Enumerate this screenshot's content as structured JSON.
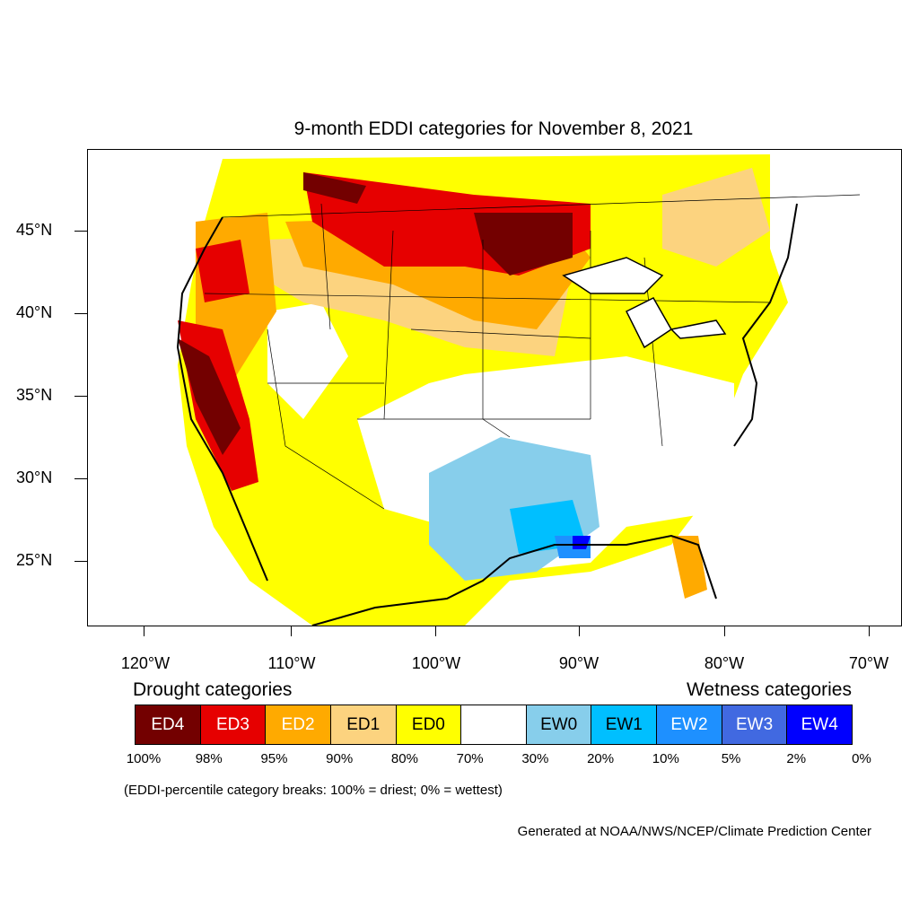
{
  "title": "9-month EDDI categories for November 8, 2021",
  "latitude_labels": [
    "45°N",
    "40°N",
    "35°N",
    "30°N",
    "25°N"
  ],
  "longitude_labels": [
    "120°W",
    "110°W",
    "100°W",
    "90°W",
    "80°W",
    "70°W"
  ],
  "legend": {
    "drought_heading": "Drought categories",
    "wetness_heading": "Wetness categories",
    "categories": [
      {
        "label": "ED4",
        "color": "#730000",
        "text_color": "#ffffff"
      },
      {
        "label": "ED3",
        "color": "#e60000",
        "text_color": "#ffffff"
      },
      {
        "label": "ED2",
        "color": "#ffaa00",
        "text_color": "#ffffff"
      },
      {
        "label": "ED1",
        "color": "#fcd37f",
        "text_color": "#000000"
      },
      {
        "label": "ED0",
        "color": "#ffff00",
        "text_color": "#000000"
      },
      {
        "label": "",
        "color": "#ffffff",
        "text_color": "#000000"
      },
      {
        "label": "EW0",
        "color": "#87ceeb",
        "text_color": "#000000"
      },
      {
        "label": "EW1",
        "color": "#00bfff",
        "text_color": "#000000"
      },
      {
        "label": "EW2",
        "color": "#1e90ff",
        "text_color": "#ffffff"
      },
      {
        "label": "EW3",
        "color": "#4169e1",
        "text_color": "#ffffff"
      },
      {
        "label": "EW4",
        "color": "#0000ff",
        "text_color": "#ffffff"
      }
    ],
    "percent_breaks": [
      "100%",
      "98%",
      "95%",
      "90%",
      "80%",
      "70%",
      "30%",
      "20%",
      "10%",
      "5%",
      "2%",
      "0%"
    ]
  },
  "note": "(EDDI-percentile category breaks: 100% = driest; 0% = wettest)",
  "credit": "Generated at NOAA/NWS/NCEP/Climate Prediction Center"
}
